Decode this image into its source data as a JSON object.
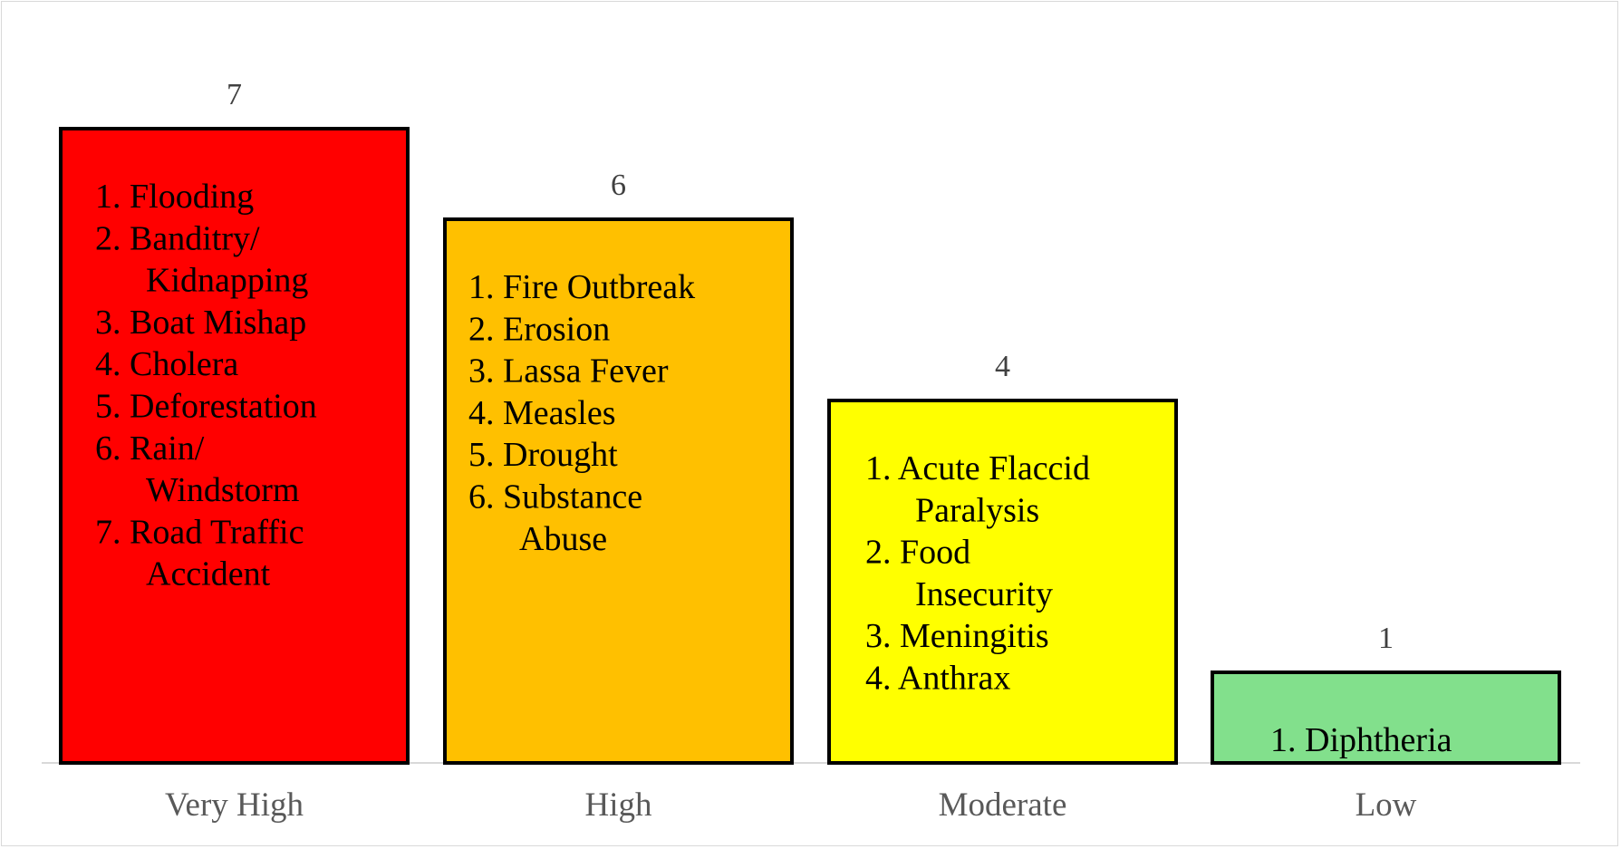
{
  "chart_data": {
    "type": "bar",
    "title": "",
    "xlabel": "",
    "ylabel": "",
    "ylim": [
      0,
      7
    ],
    "grid": false,
    "legend": "none",
    "categories": [
      "Very High",
      "High",
      "Moderate",
      "Low"
    ],
    "values": [
      7,
      6,
      4,
      1
    ],
    "colors": [
      "#ff0000",
      "#ffc000",
      "#ffff00",
      "#82e08c"
    ],
    "bar_items": [
      [
        [
          "1. Flooding"
        ],
        [
          "2. Banditry/",
          "Kidnapping"
        ],
        [
          "3. Boat Mishap"
        ],
        [
          "4. Cholera"
        ],
        [
          "5. Deforestation"
        ],
        [
          "6. Rain/",
          "Windstorm"
        ],
        [
          "7. Road Traffic",
          "Accident"
        ]
      ],
      [
        [
          "1. Fire Outbreak"
        ],
        [
          "2. Erosion"
        ],
        [
          "3. Lassa Fever"
        ],
        [
          "4. Measles"
        ],
        [
          "5. Drought"
        ],
        [
          "6. Substance",
          "Abuse"
        ]
      ],
      [
        [
          "1. Acute Flaccid",
          "Paralysis"
        ],
        [
          "2. Food",
          "Insecurity"
        ],
        [
          "3. Meningitis"
        ],
        [
          "4. Anthrax"
        ]
      ],
      [
        [
          "1. Diphtheria"
        ]
      ]
    ]
  }
}
